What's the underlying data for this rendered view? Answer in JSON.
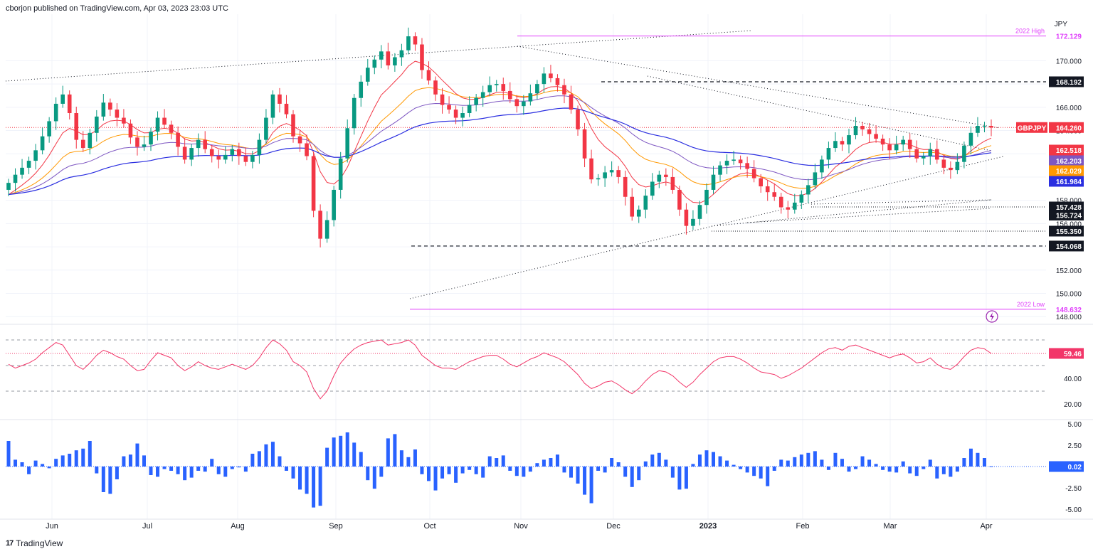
{
  "header": {
    "publisher": "cborjon published on TradingView.com, Apr 03, 2023 23:03 UTC"
  },
  "footer": {
    "brand": "TradingView"
  },
  "chart_data": {
    "type": "candlestick",
    "symbol": "GBPJPY",
    "currency": "JPY",
    "y_ticks": [
      "148.000",
      "150.000",
      "152.000",
      "154.000",
      "156.000",
      "158.000",
      "160.000",
      "162.000",
      "164.000",
      "166.000",
      "168.000",
      "170.000"
    ],
    "x_ticks": [
      "Jun",
      "Jul",
      "Aug",
      "Sep",
      "Oct",
      "Nov",
      "Dec",
      "2023",
      "Feb",
      "Mar",
      "Apr"
    ],
    "price_range": [
      147.4,
      174.0
    ],
    "levels": [
      {
        "value": 172.129,
        "label": "172.129",
        "color": "#e040fb",
        "style": "solid",
        "note": "2022 High"
      },
      {
        "value": 168.192,
        "label": "168.192",
        "color": "#131722",
        "style": "dashed"
      },
      {
        "value": 157.428,
        "label": "157.428",
        "color": "#131722",
        "style": "dotted"
      },
      {
        "value": 156.724,
        "label": "156.724",
        "color": "#131722",
        "style": "none"
      },
      {
        "value": 155.35,
        "label": "155.350",
        "color": "#131722",
        "style": "dotted"
      },
      {
        "value": 154.068,
        "label": "154.068",
        "color": "#131722",
        "style": "dashed"
      },
      {
        "value": 148.632,
        "label": "148.632",
        "color": "#e040fb",
        "style": "solid",
        "note": "2022 Low"
      }
    ],
    "last_price": {
      "value": 164.26,
      "label": "164.260",
      "symbol": "GBPJPY",
      "color": "#f23645"
    },
    "ma_labels": [
      {
        "value": 162.518,
        "label": "162.518",
        "color": "#f23645"
      },
      {
        "value": 162.203,
        "label": "162.203",
        "color": "#7e57c2"
      },
      {
        "value": 162.029,
        "label": "162.029",
        "color": "#ff9800"
      },
      {
        "value": 161.984,
        "label": "161.984",
        "color": "#2a2ee0"
      }
    ],
    "closes": [
      159.5,
      160.2,
      160.8,
      161.4,
      162.3,
      163.5,
      164.8,
      166.3,
      167.1,
      165.5,
      163.2,
      162.5,
      163.8,
      165.2,
      166.4,
      165.8,
      165.1,
      164.6,
      163.4,
      162.6,
      162.8,
      163.9,
      165.1,
      164.5,
      163.8,
      162.6,
      161.5,
      162.5,
      163.2,
      162.4,
      161.8,
      161.5,
      161.9,
      162.4,
      161.8,
      161.3,
      161.9,
      163.2,
      165.1,
      167.1,
      166.3,
      165.4,
      163.5,
      162.9,
      161.8,
      157.1,
      154.7,
      156.3,
      158.9,
      161.6,
      164.2,
      166.8,
      168.2,
      169.4,
      170.1,
      170.8,
      169.6,
      170.3,
      170.9,
      172.1,
      171.4,
      169.2,
      168.3,
      167.1,
      166.2,
      165.8,
      165.1,
      165.5,
      166.2,
      166.8,
      167.3,
      167.9,
      168.0,
      167.4,
      166.7,
      166.1,
      166.5,
      167.2,
      168.0,
      168.9,
      168.5,
      167.9,
      167.1,
      165.8,
      164.1,
      161.6,
      159.8,
      159.9,
      160.4,
      160.6,
      160.0,
      158.3,
      156.6,
      157.2,
      158.4,
      159.6,
      160.2,
      160.0,
      158.9,
      157.2,
      155.8,
      156.4,
      157.6,
      158.9,
      160.2,
      161.0,
      161.4,
      161.5,
      161.2,
      160.7,
      159.9,
      159.2,
      158.7,
      158.3,
      157.4,
      157.2,
      157.8,
      158.5,
      159.3,
      160.4,
      161.5,
      162.5,
      163.1,
      162.8,
      163.6,
      164.4,
      164.1,
      163.7,
      163.3,
      162.8,
      162.3,
      162.8,
      163.2,
      162.4,
      161.6,
      161.8,
      162.4,
      161.5,
      160.8,
      160.6,
      161.3,
      162.7,
      163.8,
      164.4,
      164.4,
      164.26
    ],
    "rsi": {
      "value_label": "59.46",
      "ticks": [
        "20.00",
        "40.00"
      ],
      "levels": [
        70,
        50,
        30
      ],
      "values": [
        51,
        48,
        50,
        52,
        55,
        60,
        64,
        68,
        66,
        58,
        50,
        47,
        52,
        58,
        62,
        60,
        57,
        55,
        50,
        46,
        47,
        54,
        60,
        58,
        56,
        50,
        46,
        49,
        53,
        50,
        48,
        47,
        49,
        51,
        49,
        47,
        50,
        56,
        64,
        70,
        67,
        62,
        53,
        50,
        45,
        32,
        24,
        30,
        42,
        52,
        58,
        63,
        66,
        68,
        69,
        70,
        66,
        67,
        68,
        70,
        66,
        58,
        54,
        50,
        48,
        48,
        47,
        50,
        53,
        55,
        57,
        58,
        58,
        55,
        51,
        49,
        52,
        55,
        57,
        60,
        58,
        56,
        53,
        48,
        43,
        36,
        32,
        34,
        37,
        38,
        35,
        31,
        28,
        32,
        38,
        43,
        46,
        45,
        42,
        37,
        33,
        37,
        43,
        48,
        53,
        56,
        57,
        57,
        55,
        52,
        48,
        45,
        44,
        43,
        40,
        42,
        45,
        48,
        52,
        56,
        60,
        63,
        64,
        62,
        65,
        66,
        64,
        62,
        60,
        58,
        56,
        58,
        59,
        56,
        52,
        53,
        56,
        51,
        48,
        47,
        51,
        57,
        62,
        64,
        63,
        59.46
      ]
    },
    "momentum": {
      "value_label": "0.02",
      "ticks": [
        "5.00",
        "2.50",
        "0.02",
        "-2.50",
        "-5.00"
      ],
      "values": [
        3.0,
        0.8,
        0.5,
        -0.9,
        0.7,
        0.3,
        -0.2,
        0.9,
        1.3,
        1.5,
        1.9,
        2.1,
        3.0,
        -0.8,
        -3.0,
        -3.2,
        -1.5,
        1.2,
        1.4,
        2.7,
        1.3,
        -1.0,
        -1.2,
        -0.3,
        -0.5,
        -0.9,
        -1.6,
        -1.3,
        -0.5,
        -0.6,
        0.9,
        -0.9,
        -1.2,
        -0.3,
        -0.1,
        -0.6,
        1.5,
        1.8,
        2.6,
        2.9,
        1.2,
        -0.5,
        -1.4,
        -2.7,
        -3.2,
        -4.8,
        -4.6,
        2.2,
        3.4,
        3.6,
        4.0,
        2.8,
        1.7,
        -1.6,
        -2.6,
        -1.2,
        3.3,
        3.8,
        1.9,
        1.1,
        2.0,
        -0.9,
        -1.7,
        -2.8,
        -1.4,
        -0.9,
        -1.9,
        -0.8,
        -0.4,
        -0.9,
        -1.3,
        1.2,
        1.0,
        1.3,
        -0.5,
        -1.1,
        -1.2,
        -0.6,
        0.4,
        0.8,
        1.0,
        1.4,
        -0.7,
        -1.3,
        -2.0,
        -3.3,
        -4.3,
        -0.5,
        -0.7,
        1.0,
        0.5,
        -1.2,
        -2.4,
        -1.6,
        0.6,
        1.4,
        1.6,
        0.8,
        -1.3,
        -2.7,
        -2.6,
        0.3,
        1.4,
        1.9,
        1.7,
        1.2,
        0.7,
        0.2,
        -0.3,
        -0.7,
        -1.1,
        -1.4,
        -2.3,
        -0.5,
        0.8,
        0.7,
        1.1,
        1.4,
        1.6,
        1.8,
        0.8,
        -0.4,
        1.6,
        0.9,
        -0.6,
        -0.3,
        1.2,
        0.8,
        0.3,
        -0.4,
        -0.6,
        -0.7,
        0.6,
        -0.8,
        -1.1,
        -0.3,
        0.8,
        -1.4,
        -0.9,
        -1.2,
        -0.6,
        1.0,
        2.1,
        1.6,
        1.0,
        0.02
      ]
    }
  }
}
